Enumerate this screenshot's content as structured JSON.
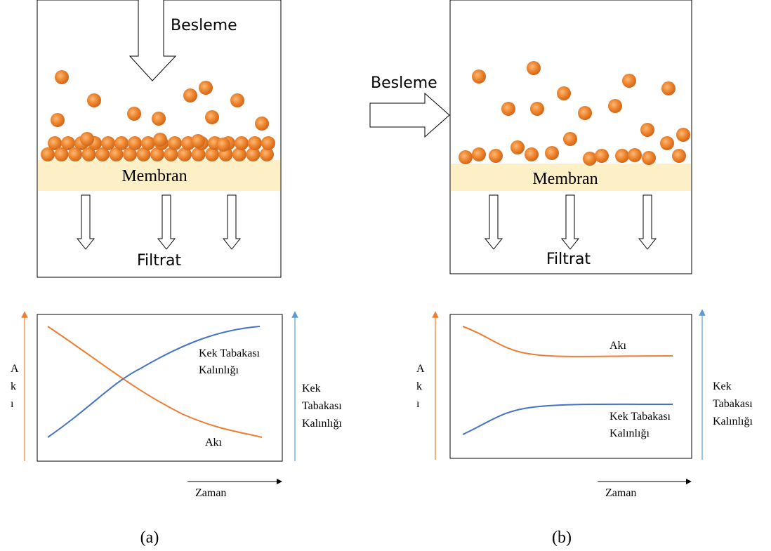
{
  "panels": [
    {
      "label": "(a)",
      "feed": "Besleme",
      "membrane": "Membran",
      "filtrate": "Filtrat",
      "graph": {
        "flux_axis": [
          "A",
          "k",
          "ı"
        ],
        "cake_axis": [
          "Kek",
          "Tabakası",
          "Kalınlığı"
        ],
        "cake_curve": [
          "Kek Tabakası",
          "Kalınlığı"
        ],
        "flux_curve": "Akı",
        "time_axis": "Zaman"
      }
    },
    {
      "label": "(b)",
      "feed": "Besleme",
      "membrane": "Membran",
      "filtrate": "Filtrat",
      "graph": {
        "flux_axis": [
          "A",
          "k",
          "ı"
        ],
        "cake_axis": [
          "Kek",
          "Tabakası",
          "Kalınlığı"
        ],
        "cake_curve": [
          "Kek Tabakası",
          "Kalınlığı"
        ],
        "flux_curve": "Akı",
        "time_axis": "Zaman"
      }
    }
  ]
}
